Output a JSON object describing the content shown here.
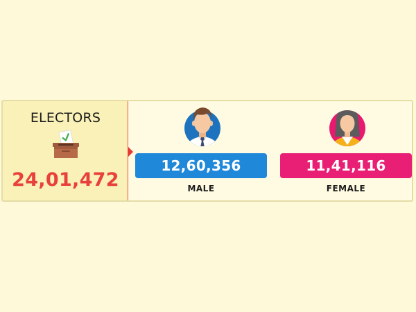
{
  "title": "ELECTORS",
  "total": "24,01,472",
  "icons": {
    "ballot": "ballot-box-icon",
    "male": "male-avatar-icon",
    "female": "female-avatar-icon"
  },
  "male": {
    "count": "12,60,356",
    "label": "MALE",
    "color": "#1f88d9"
  },
  "female": {
    "count": "11,41,116",
    "label": "FEMALE",
    "color": "#e81f74"
  },
  "accent": "#e8413b"
}
